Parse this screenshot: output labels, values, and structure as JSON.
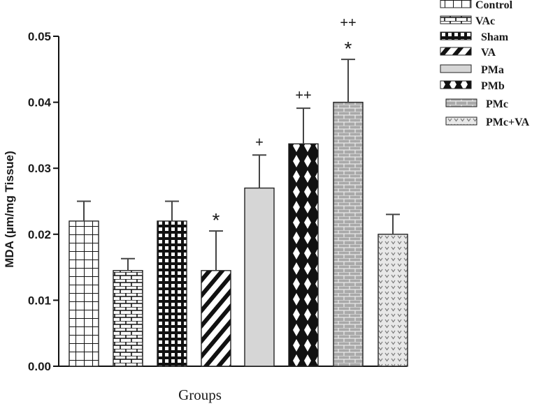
{
  "chart_data": {
    "type": "bar",
    "xlabel": "Groups",
    "ylabel": "MDA (µm/mg Tissue)",
    "ylim": [
      0,
      0.05
    ],
    "yticks": [
      "0.00",
      "0.01",
      "0.02",
      "0.03",
      "0.04",
      "0.05"
    ],
    "categories": [
      "Control",
      "VAc",
      "Sham",
      "VA",
      "PMa",
      "PMb",
      "PMc",
      "PMc+VA"
    ],
    "values": [
      0.022,
      0.0145,
      0.022,
      0.0145,
      0.027,
      0.0337,
      0.04,
      0.02
    ],
    "errors": [
      0.003,
      0.0018,
      0.003,
      0.006,
      0.005,
      0.0054,
      0.0065,
      0.003
    ],
    "annotations": [
      "",
      "",
      "",
      "*",
      "+",
      "++",
      "++\n*",
      ""
    ],
    "legend": [
      "Control",
      "VAc",
      "Sham",
      "VA",
      "PMa",
      "PMb",
      "PMc",
      "PMc+VA"
    ],
    "patterns": [
      "grid",
      "brick",
      "dense-grid",
      "diagonal",
      "solid-light",
      "diamond",
      "gray-brick",
      "dotted"
    ],
    "legend_placement": "top-right",
    "grid": false
  }
}
